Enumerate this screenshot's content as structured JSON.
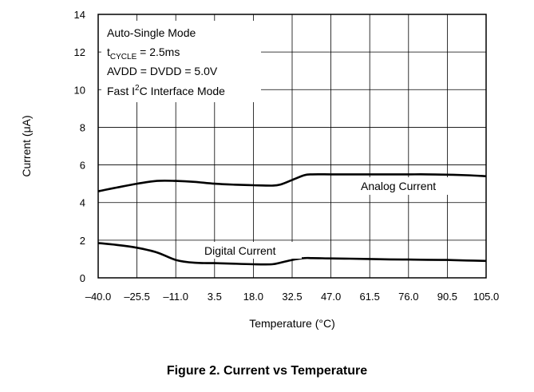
{
  "figure_caption": "Figure 2. Current vs Temperature",
  "chart_data": {
    "type": "line",
    "xlabel": "Temperature (°C)",
    "ylabel": "Current (μA)",
    "xlim": [
      -40.0,
      105.0
    ],
    "ylim": [
      0,
      14
    ],
    "x_ticks": [
      -40.0,
      -25.5,
      -11.0,
      3.5,
      18.0,
      32.5,
      47.0,
      61.5,
      76.0,
      90.5,
      105.0
    ],
    "x_tick_labels": [
      "–40.0",
      "–25.5",
      "–11.0",
      "3.5",
      "18.0",
      "32.5",
      "47.0",
      "61.5",
      "76.0",
      "90.5",
      "105.0"
    ],
    "y_ticks": [
      0,
      2,
      4,
      6,
      8,
      10,
      12,
      14
    ],
    "y_tick_labels": [
      "0",
      "2",
      "4",
      "6",
      "8",
      "10",
      "12",
      "14"
    ],
    "grid": true,
    "annotation_box": {
      "line1": "Auto-Single Mode",
      "line2_prefix": "t",
      "line2_sub": "CYCLE",
      "line2_suffix": " = 2.5ms",
      "line3": "AVDD = DVDD = 5.0V",
      "line4_prefix": "Fast I",
      "line4_sup": "2",
      "line4_suffix": "C Interface Mode"
    },
    "series": [
      {
        "name": "Analog Current",
        "x": [
          -40,
          -33,
          -25.5,
          -18,
          -11,
          -4,
          3.5,
          11,
          18,
          25,
          28,
          32.5,
          37,
          40,
          47,
          54,
          61.5,
          69,
          76,
          83,
          90.5,
          98,
          105
        ],
        "y": [
          4.6,
          4.8,
          5.0,
          5.15,
          5.15,
          5.1,
          5.0,
          4.95,
          4.92,
          4.9,
          4.95,
          5.2,
          5.45,
          5.5,
          5.5,
          5.5,
          5.5,
          5.5,
          5.5,
          5.5,
          5.48,
          5.45,
          5.4
        ]
      },
      {
        "name": "Digital Current",
        "x": [
          -40,
          -33,
          -25.5,
          -18,
          -11,
          -4,
          3.5,
          11,
          18,
          25,
          28,
          32.5,
          37,
          40,
          47,
          54,
          61.5,
          69,
          76,
          83,
          90.5,
          98,
          105
        ],
        "y": [
          1.85,
          1.75,
          1.6,
          1.35,
          0.95,
          0.8,
          0.78,
          0.75,
          0.72,
          0.72,
          0.8,
          0.95,
          1.05,
          1.05,
          1.03,
          1.02,
          1.0,
          0.98,
          0.97,
          0.96,
          0.95,
          0.92,
          0.9
        ]
      }
    ]
  }
}
